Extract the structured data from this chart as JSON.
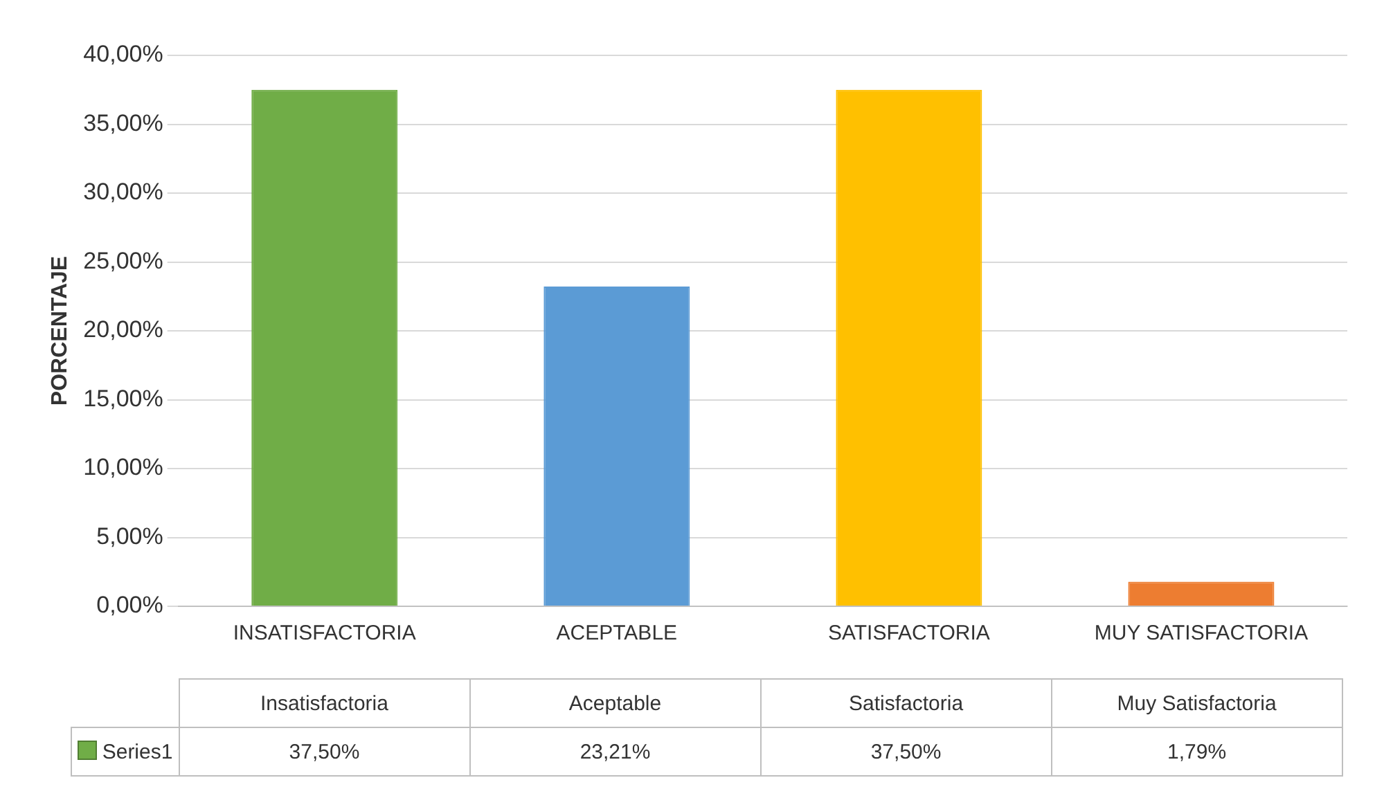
{
  "chart_data": {
    "type": "bar",
    "ylabel": "PORCENTAJE",
    "categories": [
      "INSATISFACTORIA",
      "ACEPTABLE",
      "SATISFACTORIA",
      "MUY SATISFACTORIA"
    ],
    "series": [
      {
        "name": "Series1",
        "colors": [
          "#70ad47",
          "#5b9bd5",
          "#ffc000",
          "#ed7d31"
        ],
        "values": [
          37.5,
          23.21,
          37.5,
          1.79
        ],
        "value_labels": [
          "37,50%",
          "23,21%",
          "37,50%",
          "1,79%"
        ]
      }
    ],
    "annotations": [
      "Insatisfactoria",
      "Aceptable",
      "Satisfactoria",
      "Muy Satisfactoria"
    ],
    "ylim": [
      0,
      40
    ],
    "yticks": [
      {
        "value": 0,
        "label": "0,00%"
      },
      {
        "value": 5,
        "label": "5,00%"
      },
      {
        "value": 10,
        "label": "10,00%"
      },
      {
        "value": 15,
        "label": "15,00%"
      },
      {
        "value": 20,
        "label": "20,00%"
      },
      {
        "value": 25,
        "label": "25,00%"
      },
      {
        "value": 30,
        "label": "30,00%"
      },
      {
        "value": 35,
        "label": "35,00%"
      },
      {
        "value": 40,
        "label": "40,00%"
      }
    ],
    "grid": "y",
    "legend": "bottom"
  }
}
